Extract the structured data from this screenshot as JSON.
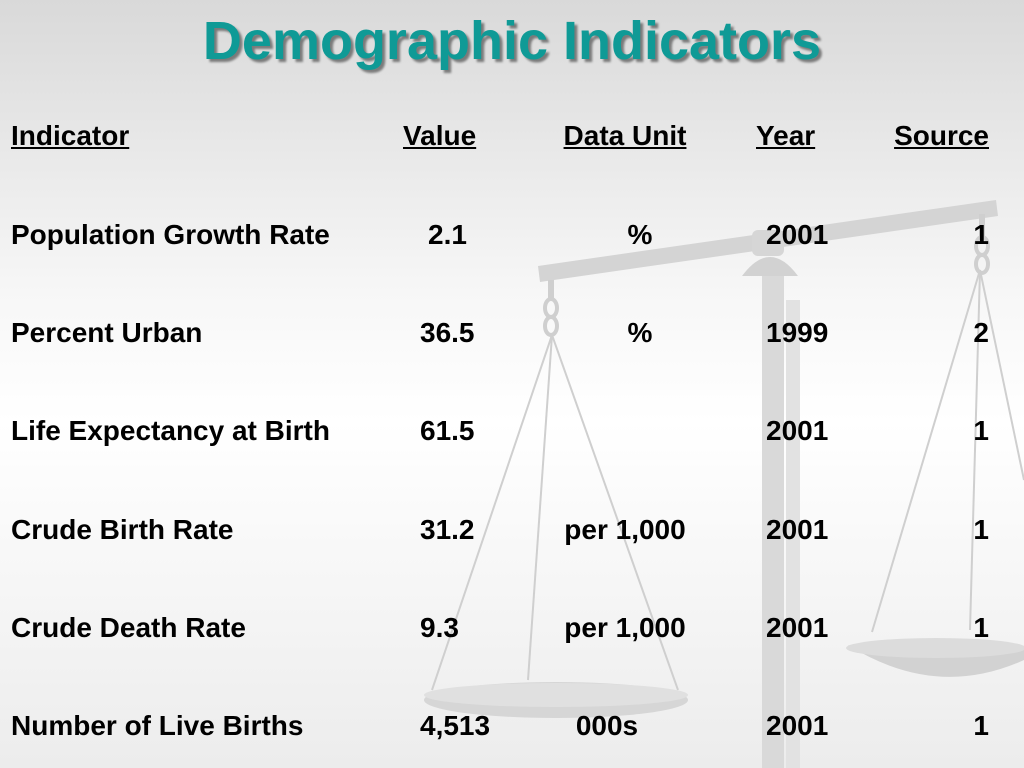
{
  "title": "Demographic Indicators",
  "table": {
    "headers": {
      "indicator": "Indicator",
      "value": "Value",
      "unit": "Data Unit",
      "year": "Year",
      "source": "Source"
    },
    "rows": [
      {
        "indicator": "Population Growth Rate",
        "value": "2.1",
        "unit": "%",
        "year": "2001",
        "source": "1"
      },
      {
        "indicator": "Percent Urban",
        "value": "36.5",
        "unit": "%",
        "year": "1999",
        "source": "2"
      },
      {
        "indicator": "Life Expectancy at Birth",
        "value": "61.5",
        "unit": "",
        "year": "2001",
        "source": "1"
      },
      {
        "indicator": "Crude Birth Rate",
        "value": "31.2",
        "unit": "per 1,000",
        "year": "2001",
        "source": "1"
      },
      {
        "indicator": "Crude Death Rate",
        "value": "9.3",
        "unit": "per 1,000",
        "year": "2001",
        "source": "1"
      },
      {
        "indicator": "Number of Live Births",
        "value": "4,513",
        "unit": "000s",
        "year": "2001",
        "source": "1"
      }
    ]
  },
  "colors": {
    "title": "#0f9a96",
    "text": "#000000",
    "watermark": "#c8c8c8"
  },
  "watermark_icon": "balance-scale-icon"
}
